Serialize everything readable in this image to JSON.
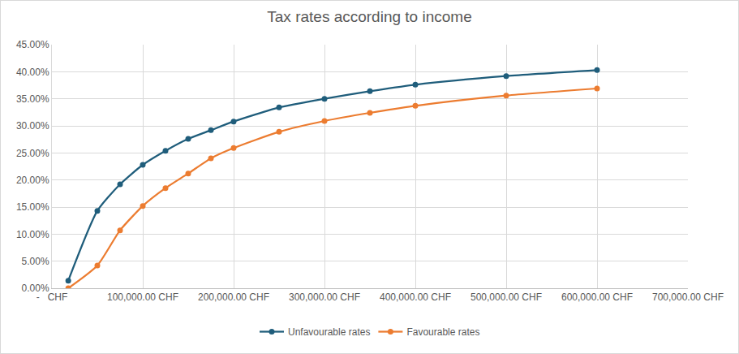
{
  "chart_data": {
    "type": "line",
    "title": "Tax rates according to income",
    "line_style": "smooth",
    "marker": "circle",
    "grid": true,
    "legend": "bottom",
    "x": [
      18000,
      50000,
      75000,
      100000,
      125000,
      150000,
      175000,
      200000,
      250000,
      300000,
      350000,
      400000,
      500000,
      600000
    ],
    "series": [
      {
        "name": "Unfavourable rates",
        "color": "#1f5d7b",
        "values": [
          1.4,
          14.3,
          19.2,
          22.8,
          25.4,
          27.6,
          29.2,
          30.8,
          33.4,
          35.0,
          36.4,
          37.6,
          39.2,
          40.3
        ]
      },
      {
        "name": "Favourable rates",
        "color": "#ec7c30",
        "values": [
          0.0,
          4.2,
          10.7,
          15.2,
          18.5,
          21.2,
          24.0,
          25.9,
          28.9,
          30.9,
          32.4,
          33.7,
          35.6,
          36.9
        ]
      }
    ],
    "xlim": [
      0,
      700000
    ],
    "xticks": [
      {
        "value": 0,
        "label": "-   CHF"
      },
      {
        "value": 100000,
        "label": "100,000.00 CHF"
      },
      {
        "value": 200000,
        "label": "200,000.00 CHF"
      },
      {
        "value": 300000,
        "label": "300,000.00 CHF"
      },
      {
        "value": 400000,
        "label": "400,000.00 CHF"
      },
      {
        "value": 500000,
        "label": "500,000.00 CHF"
      },
      {
        "value": 600000,
        "label": "600,000.00 CHF"
      },
      {
        "value": 700000,
        "label": "700,000.00 CHF"
      }
    ],
    "ylim": [
      0,
      45
    ],
    "yticks": [
      {
        "value": 0,
        "label": "0.00%"
      },
      {
        "value": 5,
        "label": "5.00%"
      },
      {
        "value": 10,
        "label": "10.00%"
      },
      {
        "value": 15,
        "label": "15.00%"
      },
      {
        "value": 20,
        "label": "20.00%"
      },
      {
        "value": 25,
        "label": "25.00%"
      },
      {
        "value": 30,
        "label": "30.00%"
      },
      {
        "value": 35,
        "label": "35.00%"
      },
      {
        "value": 40,
        "label": "40.00%"
      },
      {
        "value": 45,
        "label": "45.00%"
      }
    ]
  }
}
